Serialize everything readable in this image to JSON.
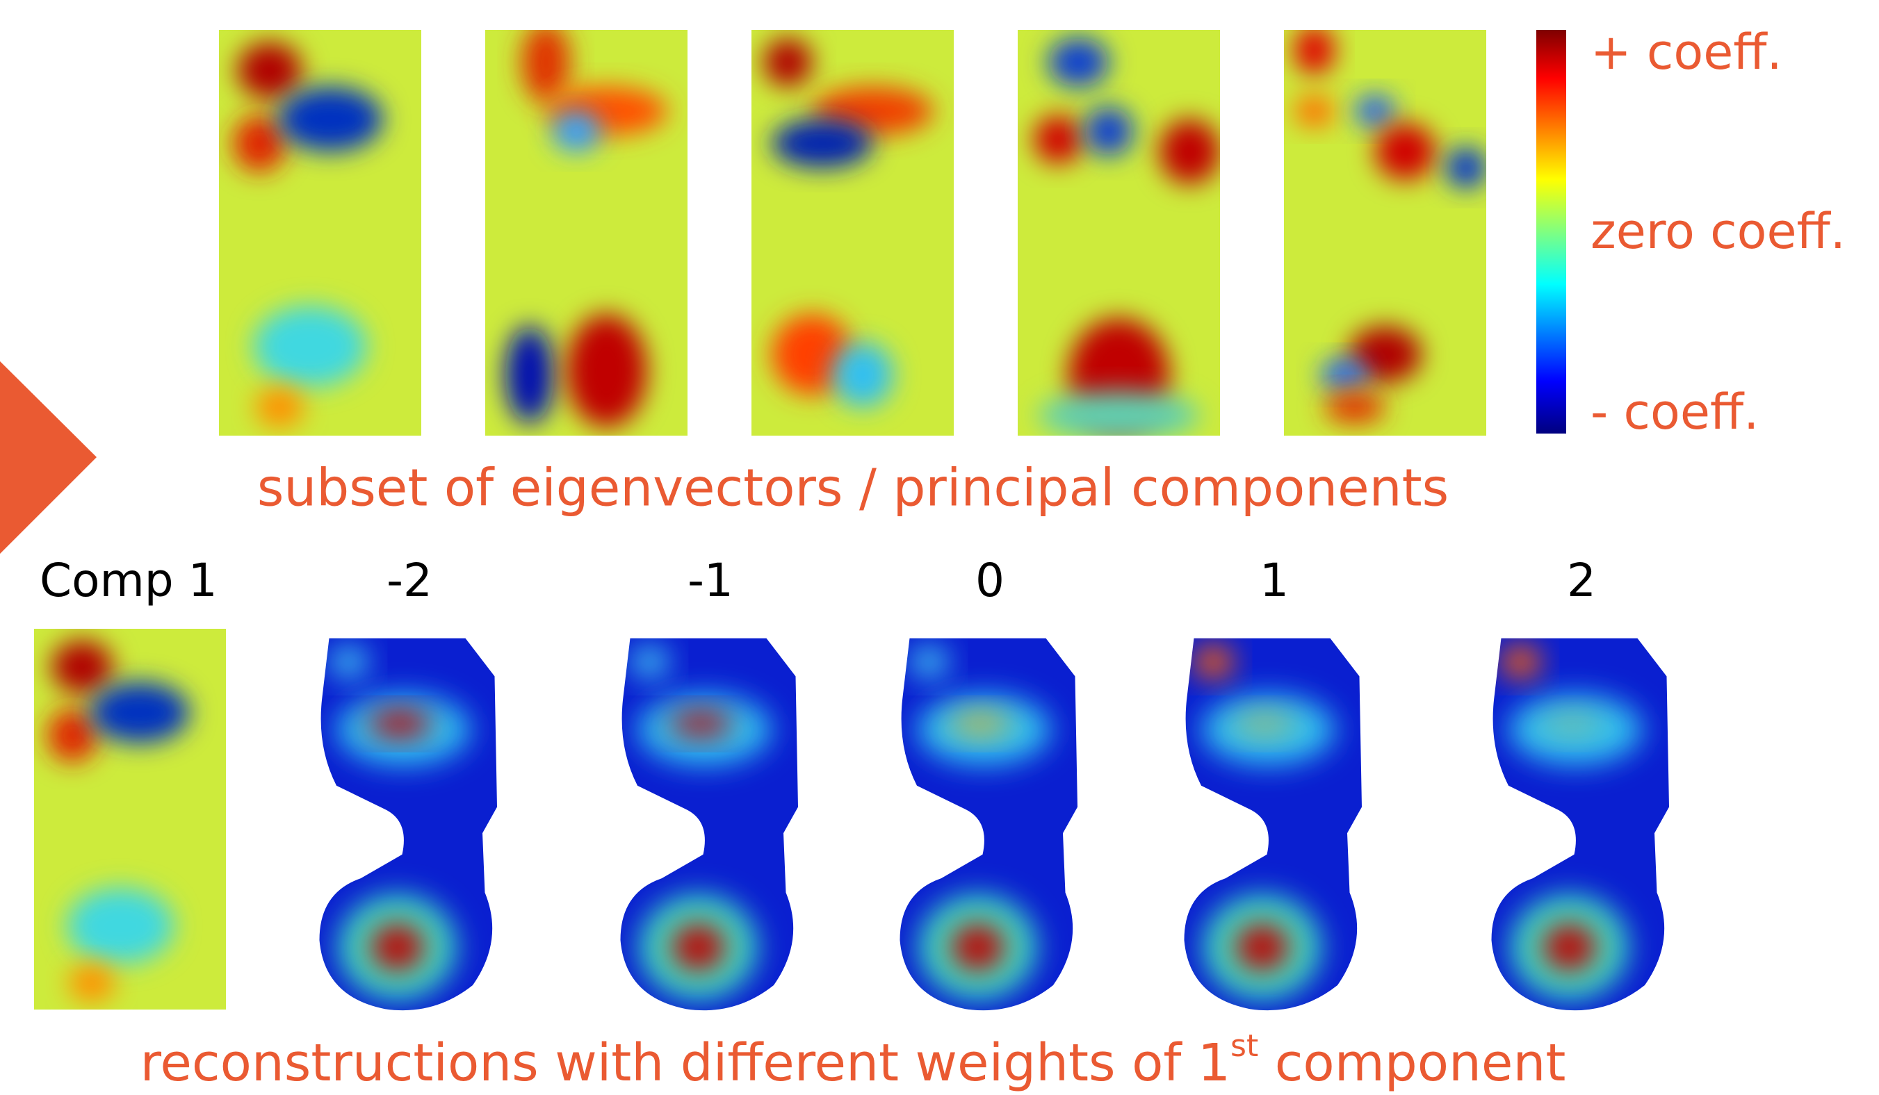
{
  "colorbar": {
    "top_label": "+ coeff.",
    "middle_label": "zero coeff.",
    "bottom_label": "- coeff."
  },
  "top_caption": "subset of eigenvectors / principal components",
  "component_label": "Comp 1",
  "weights": [
    "-2",
    "-1",
    "0",
    "1",
    "2"
  ],
  "bottom_caption": {
    "text": "reconstructions with different weights of 1",
    "superscript": "st",
    "suffix": " component"
  }
}
